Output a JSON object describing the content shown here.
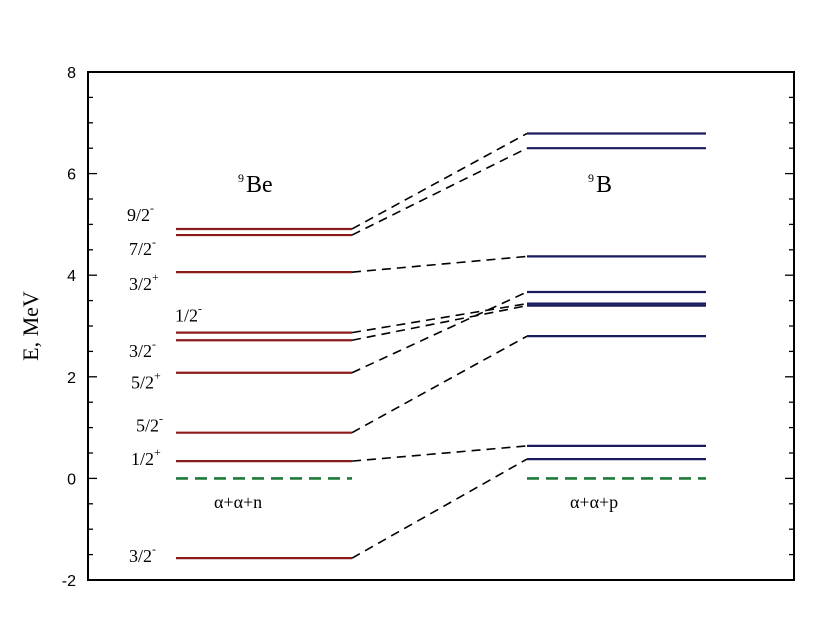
{
  "axis": {
    "ylabel": "E, MeV",
    "ylim": [
      -2,
      8
    ],
    "major_ticks": [
      -2,
      0,
      2,
      4,
      6,
      8
    ],
    "major_tick_labels": [
      "-2",
      "0",
      "2",
      "4",
      "6",
      "8"
    ],
    "minor_step": 0.5
  },
  "colors": {
    "be_level": "#8b1a1a",
    "b_level": "#1a1a5e",
    "threshold": "#1f7a3a",
    "connector": "#000000"
  },
  "nuclei": {
    "be9": {
      "mass": "9",
      "symbol": "Be",
      "threshold_label": "α+α+n"
    },
    "b9": {
      "mass": "9",
      "symbol": "B",
      "threshold_label": "α+α+p"
    }
  },
  "be_levels": [
    {
      "energy": -1.57,
      "spin": "3/2",
      "parity": "-"
    },
    {
      "energy": 0.34,
      "spin": "1/2",
      "parity": "+"
    },
    {
      "energy": 0.9,
      "spin": "5/2",
      "parity": "-"
    },
    {
      "energy": 2.08,
      "spin": "5/2",
      "parity": "+"
    },
    {
      "energy": 2.72,
      "spin": "3/2",
      "parity": "-"
    },
    {
      "energy": 2.87,
      "spin": "1/2",
      "parity": "-"
    },
    {
      "energy": 4.06,
      "spin": "3/2",
      "parity": "+"
    },
    {
      "energy": 4.79,
      "spin": "7/2",
      "parity": "-"
    },
    {
      "energy": 4.91,
      "spin": "9/2",
      "parity": "-"
    }
  ],
  "b_levels": [
    0.38,
    0.64,
    2.8,
    3.4,
    3.44,
    3.67,
    4.37,
    6.5,
    6.79
  ],
  "connections": [
    [
      0,
      0
    ],
    [
      1,
      1
    ],
    [
      2,
      2
    ],
    [
      3,
      5
    ],
    [
      4,
      3
    ],
    [
      5,
      4
    ],
    [
      6,
      6
    ],
    [
      7,
      7
    ],
    [
      8,
      8
    ]
  ],
  "threshold_energy": 0
}
